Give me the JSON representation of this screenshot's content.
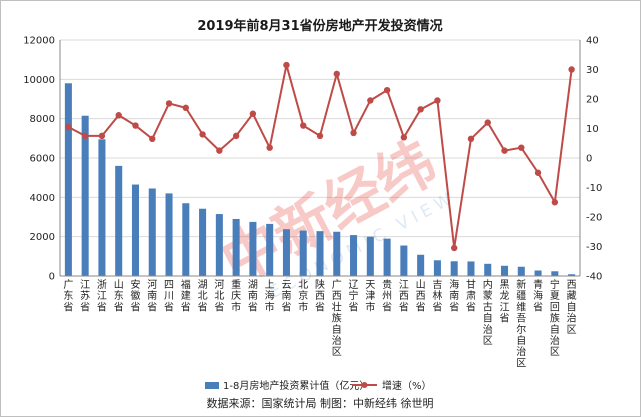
{
  "chart_data": {
    "type": "bar+line",
    "title": "2019年前8月31省份房地产开发投资情况",
    "categories": [
      "广东省",
      "江苏省",
      "浙江省",
      "山东省",
      "安徽省",
      "河南省",
      "四川省",
      "福建省",
      "湖北省",
      "河北省",
      "重庆市",
      "湖南省",
      "上海市",
      "云南省",
      "北京市",
      "陕西省",
      "广西壮族自治区",
      "辽宁省",
      "天津市",
      "贵州省",
      "江西省",
      "山西省",
      "吉林省",
      "海南省",
      "甘肃省",
      "内蒙古自治区",
      "黑龙江省",
      "新疆维吾尔自治区",
      "青海省",
      "宁夏回族自治区",
      "西藏自治区"
    ],
    "series": [
      {
        "name": "1-8月房地产投资累计值（亿元）",
        "type": "bar",
        "axis": "left",
        "color": "#4a7ebb",
        "values": [
          9800,
          8150,
          6950,
          5600,
          4650,
          4450,
          4200,
          3700,
          3420,
          3150,
          2900,
          2750,
          2650,
          2380,
          2310,
          2280,
          2250,
          2080,
          2000,
          1900,
          1550,
          1080,
          800,
          750,
          740,
          620,
          520,
          470,
          280,
          240,
          90
        ]
      },
      {
        "name": "增速（%）",
        "type": "line",
        "axis": "right",
        "color": "#be4b48",
        "values": [
          10.5,
          7.5,
          7.5,
          14.5,
          11.0,
          6.5,
          18.5,
          17.0,
          8.0,
          2.5,
          7.5,
          15.0,
          3.5,
          31.5,
          11.0,
          7.5,
          28.5,
          8.5,
          19.5,
          23.0,
          7.0,
          16.5,
          19.5,
          -30.5,
          6.5,
          12.0,
          2.5,
          3.5,
          -5.0,
          -15.0,
          30.0
        ]
      }
    ],
    "ylim_left": [
      0,
      12000
    ],
    "yticks_left": [
      0,
      2000,
      4000,
      6000,
      8000,
      10000,
      12000
    ],
    "ylim_right": [
      -40,
      40
    ],
    "yticks_right": [
      -40,
      -30,
      -20,
      -10,
      0,
      10,
      20,
      30,
      40
    ],
    "legend": "bottom",
    "grid": true
  },
  "source_note": "数据来源：国家统计局   制图：中新经纬 徐世明",
  "watermark": {
    "text_cn": "中新经纬",
    "text_en": "ECONOMIC VIEW"
  }
}
